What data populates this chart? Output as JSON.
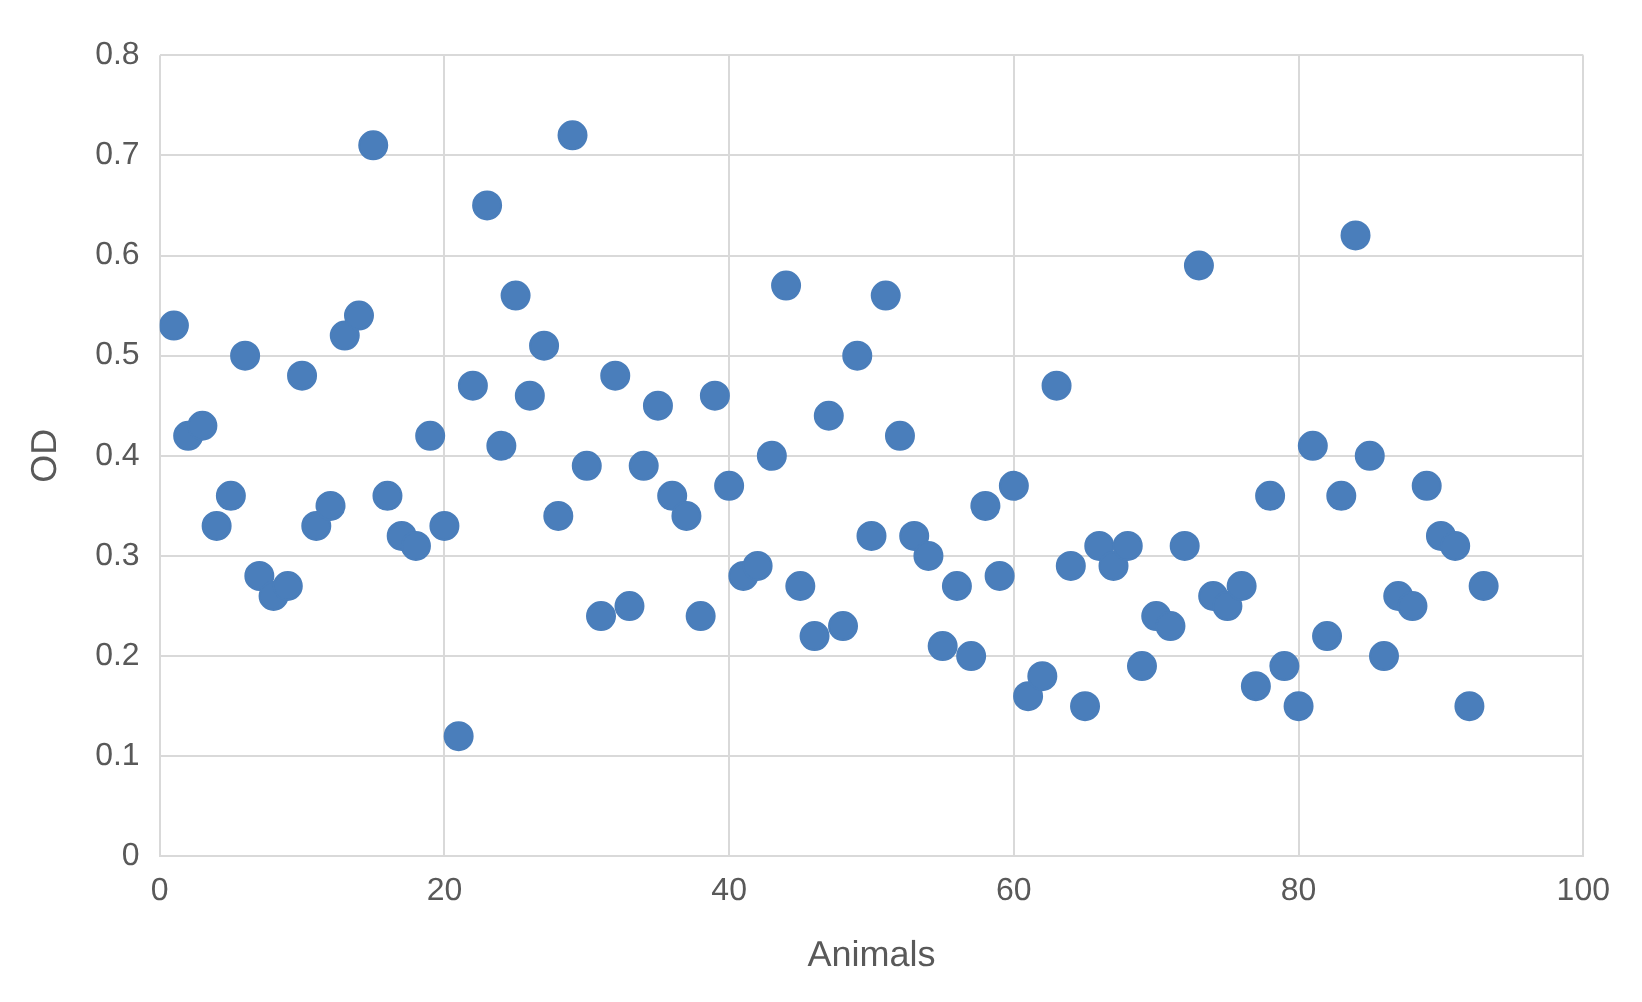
{
  "chart_data": {
    "type": "scatter",
    "xlabel": "Animals",
    "ylabel": "OD",
    "x": [
      1,
      2,
      3,
      4,
      5,
      6,
      7,
      8,
      9,
      10,
      11,
      12,
      13,
      14,
      15,
      16,
      17,
      18,
      19,
      20,
      21,
      22,
      23,
      24,
      25,
      26,
      27,
      28,
      29,
      30,
      31,
      32,
      33,
      34,
      35,
      36,
      37,
      38,
      39,
      40,
      41,
      42,
      43,
      44,
      45,
      46,
      47,
      48,
      49,
      50,
      51,
      52,
      53,
      54,
      55,
      56,
      57,
      58,
      59,
      60,
      61,
      62,
      63,
      64,
      65,
      66,
      67,
      68,
      69,
      70,
      71,
      72,
      73,
      74,
      75,
      76,
      77,
      78,
      79,
      80,
      81,
      82,
      83,
      84,
      85,
      86,
      87,
      88,
      89,
      90,
      91,
      92,
      93
    ],
    "series": [
      {
        "color": "#4a7ebb",
        "values": [
          0.53,
          0.42,
          0.43,
          0.33,
          0.36,
          0.5,
          0.28,
          0.26,
          0.27,
          0.48,
          0.33,
          0.35,
          0.52,
          0.54,
          0.71,
          0.36,
          0.32,
          0.31,
          0.42,
          0.33,
          0.12,
          0.47,
          0.65,
          0.41,
          0.56,
          0.46,
          0.51,
          0.34,
          0.72,
          0.39,
          0.24,
          0.48,
          0.25,
          0.39,
          0.45,
          0.36,
          0.34,
          0.24,
          0.46,
          0.37,
          0.28,
          0.29,
          0.4,
          0.57,
          0.27,
          0.22,
          0.44,
          0.23,
          0.5,
          0.32,
          0.56,
          0.42,
          0.32,
          0.3,
          0.21,
          0.27,
          0.2,
          0.35,
          0.28,
          0.37,
          0.16,
          0.18,
          0.47,
          0.29,
          0.15,
          0.31,
          0.29,
          0.31,
          0.19,
          0.24,
          0.23,
          0.31,
          0.59,
          0.26,
          0.25,
          0.27,
          0.17,
          0.36,
          0.19,
          0.15,
          0.41,
          0.22,
          0.36,
          0.62,
          0.4,
          0.2,
          0.26,
          0.25,
          0.37,
          0.32,
          0.31,
          0.15,
          0.27
        ]
      }
    ],
    "xlim": [
      0,
      100
    ],
    "xticks": [
      0,
      20,
      40,
      60,
      80,
      100
    ],
    "ylim": [
      0,
      0.8
    ],
    "yticks": [
      0,
      0.1,
      0.2,
      0.3,
      0.4,
      0.5,
      0.6,
      0.7,
      0.8
    ],
    "grid": true,
    "legend": false,
    "marker": "circle"
  }
}
